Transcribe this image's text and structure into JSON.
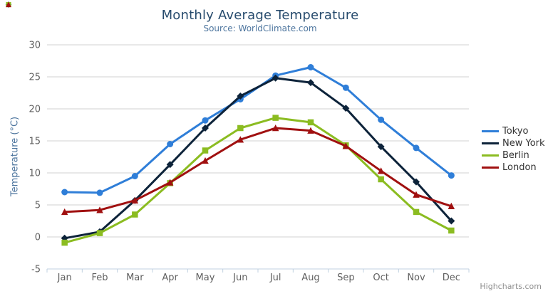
{
  "chart_data": {
    "type": "line",
    "title": "Monthly Average Temperature",
    "subtitle": "Source: WorldClimate.com",
    "ylabel": "Temperature (°C)",
    "xlabel": "",
    "categories": [
      "Jan",
      "Feb",
      "Mar",
      "Apr",
      "May",
      "Jun",
      "Jul",
      "Aug",
      "Sep",
      "Oct",
      "Nov",
      "Dec"
    ],
    "ylim": [
      -5,
      30
    ],
    "ytick_interval": 5,
    "grid": true,
    "legend_position": "right",
    "series": [
      {
        "name": "Tokyo",
        "color": "#2f7ed8",
        "marker": "circle",
        "values": [
          7.0,
          6.9,
          9.5,
          14.5,
          18.2,
          21.5,
          25.2,
          26.5,
          23.3,
          18.3,
          13.9,
          9.6
        ]
      },
      {
        "name": "New York",
        "color": "#0d233a",
        "marker": "diamond",
        "values": [
          -0.2,
          0.8,
          5.7,
          11.3,
          17.0,
          22.0,
          24.8,
          24.1,
          20.1,
          14.1,
          8.6,
          2.5
        ]
      },
      {
        "name": "Berlin",
        "color": "#8bbc21",
        "marker": "square",
        "values": [
          -0.9,
          0.6,
          3.5,
          8.4,
          13.5,
          17.0,
          18.6,
          17.9,
          14.3,
          9.0,
          3.9,
          1.0
        ]
      },
      {
        "name": "London",
        "color": "#a01010",
        "marker": "triangle",
        "values": [
          3.9,
          4.2,
          5.7,
          8.5,
          11.9,
          15.2,
          17.0,
          16.6,
          14.2,
          10.3,
          6.6,
          4.8
        ]
      }
    ]
  },
  "credits": {
    "label": "Highcharts.com"
  },
  "export_menu": {
    "icon": "hamburger-icon"
  },
  "style": {
    "grid_color": "#d0d0d0",
    "axis_line_color": "#c0d0e0",
    "tick_label_color": "#606060",
    "title_color": "#274b6d",
    "subtitle_color": "#4d759e"
  }
}
